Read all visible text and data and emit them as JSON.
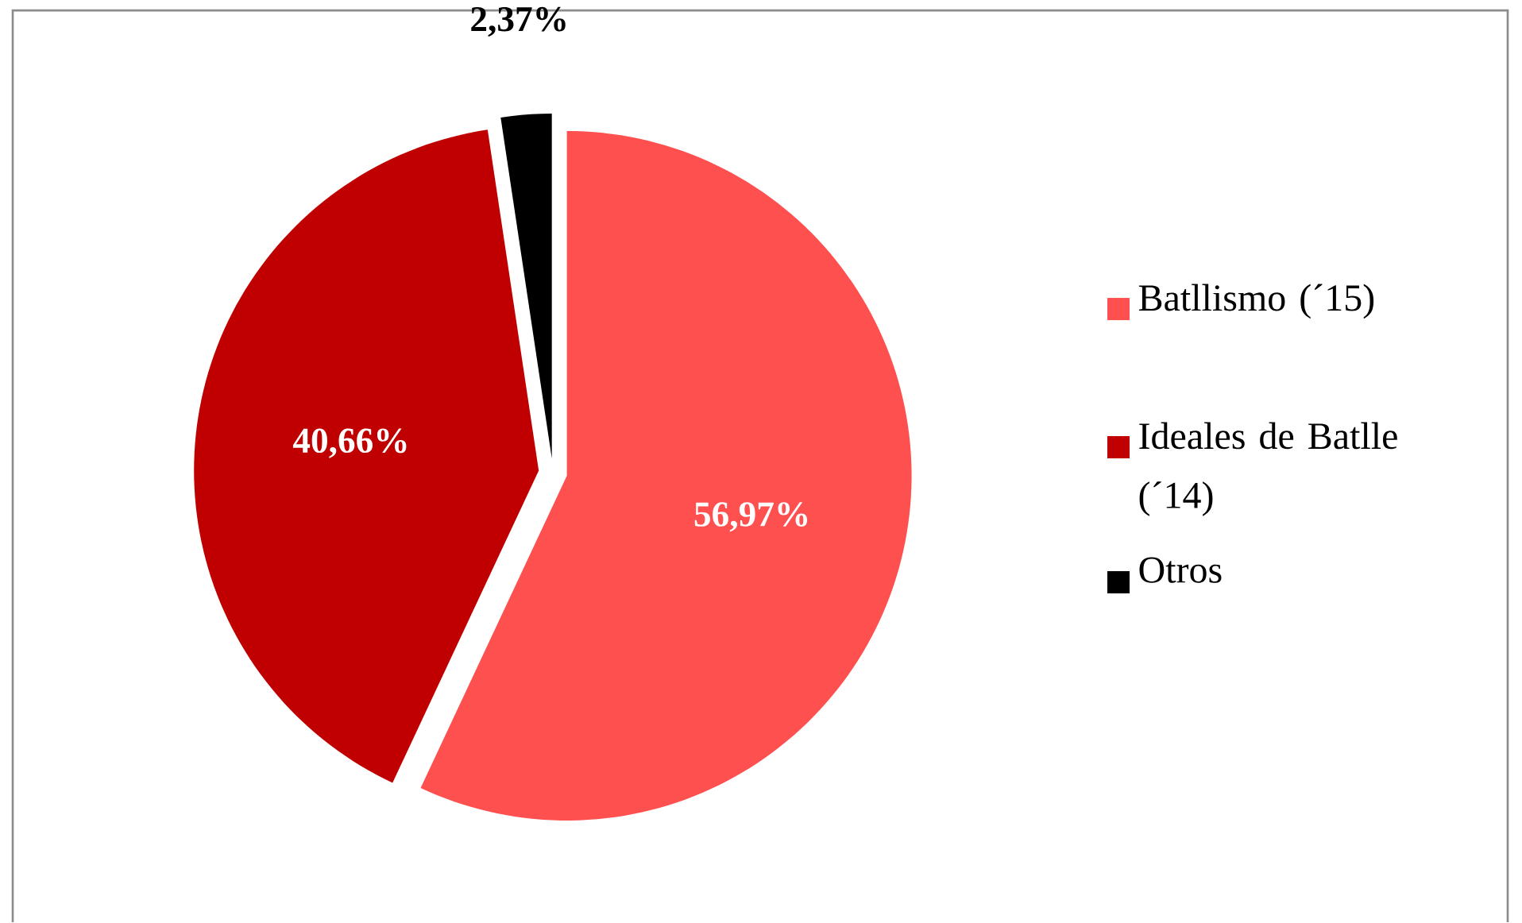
{
  "chart_data": {
    "type": "pie",
    "categories": [
      "Batllismo (´15)",
      "Ideales de Batlle (´14)",
      "Otros"
    ],
    "values": [
      56.97,
      40.66,
      2.37
    ],
    "colors": [
      "#ff5050",
      "#c00000",
      "#000000"
    ],
    "value_labels": [
      "56,97%",
      "40,66%",
      "2,37%"
    ],
    "legend": "right"
  }
}
